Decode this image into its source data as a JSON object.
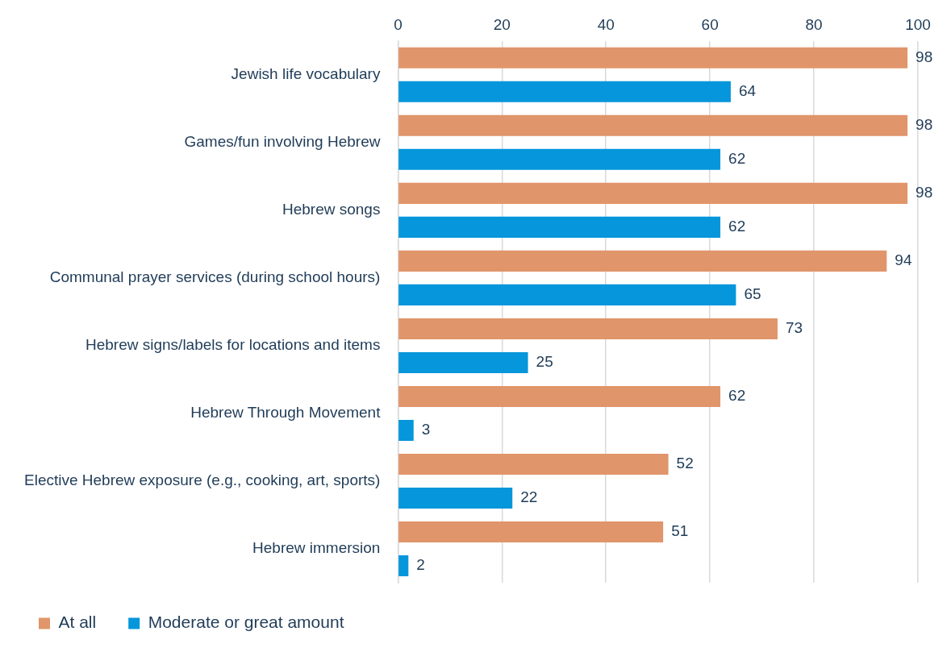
{
  "chart_data": {
    "type": "bar",
    "orientation": "horizontal",
    "categories": [
      "Jewish life vocabulary",
      "Games/fun involving Hebrew",
      "Hebrew songs",
      "Communal prayer services (during school hours)",
      "Hebrew signs/labels for locations and items",
      "Hebrew Through Movement",
      "Elective Hebrew exposure (e.g., cooking, art, sports)",
      "Hebrew immersion"
    ],
    "series": [
      {
        "name": "At all",
        "color": "#e0956a",
        "values": [
          98,
          98,
          98,
          94,
          73,
          62,
          52,
          51
        ]
      },
      {
        "name": "Moderate or great amount",
        "color": "#0596db",
        "values": [
          64,
          62,
          62,
          65,
          25,
          3,
          22,
          2
        ]
      }
    ],
    "xlim": [
      0,
      100
    ],
    "xticks": [
      0,
      20,
      40,
      60,
      80,
      100
    ],
    "grid": "x",
    "legend": "bottom",
    "data_labels": true
  }
}
